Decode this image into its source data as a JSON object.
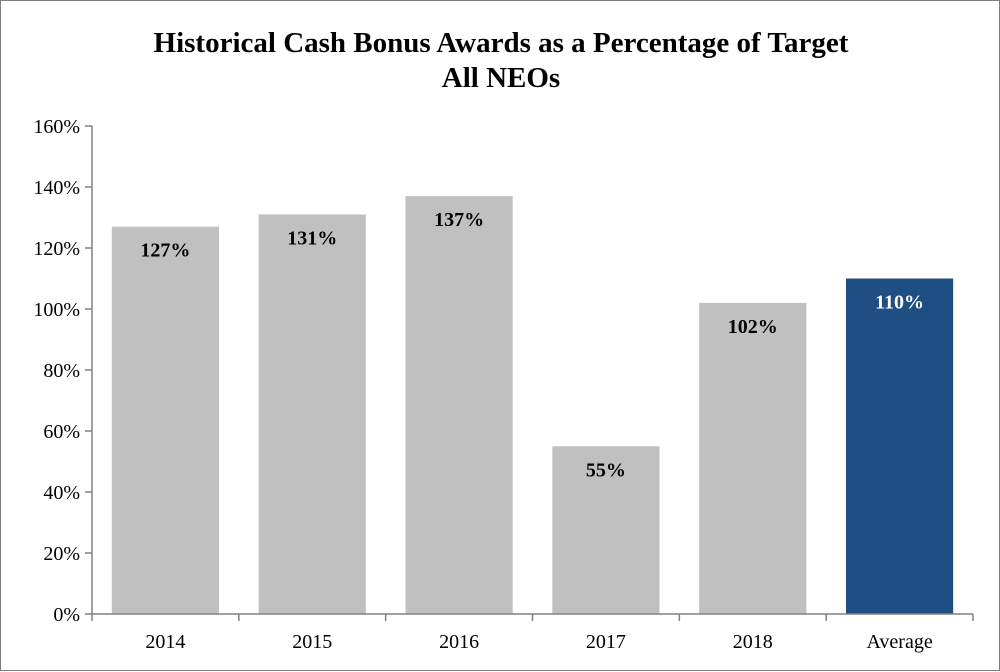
{
  "chart_data": {
    "type": "bar",
    "title_lines": [
      "Historical Cash Bonus Awards  as a Percentage of Target",
      "All NEOs"
    ],
    "categories": [
      "2014",
      "2015",
      "2016",
      "2017",
      "2018",
      "Average"
    ],
    "values": [
      127,
      131,
      137,
      55,
      102,
      110
    ],
    "data_labels": [
      "127%",
      "131%",
      "137%",
      "55%",
      "102%",
      "110%"
    ],
    "ylim": [
      0,
      160
    ],
    "yticks": [
      0,
      20,
      40,
      60,
      80,
      100,
      120,
      140,
      160
    ],
    "ytick_labels": [
      "0%",
      "20%",
      "40%",
      "60%",
      "80%",
      "100%",
      "120%",
      "140%",
      "160%"
    ],
    "xlabel": "",
    "ylabel": "",
    "grid": false,
    "legend": "none",
    "colors": {
      "bar_default": "#c0c0c0",
      "bar_highlight": "#1f4e82",
      "label_default": "#000000",
      "label_highlight": "#ffffff",
      "axis": "#808080"
    },
    "highlight_category": "Average"
  }
}
